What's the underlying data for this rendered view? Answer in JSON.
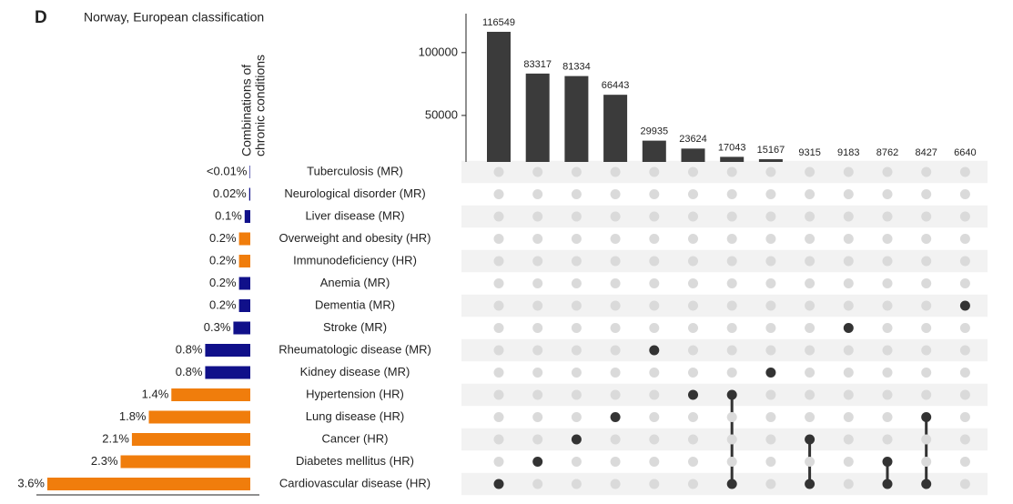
{
  "chart_data": {
    "type": "upset",
    "panel_label": "D",
    "title": "Norway, European classification",
    "ylabel": [
      "Combinations of",
      "chronic conditions"
    ],
    "bar_color": "#3b3b3b",
    "ylim": [
      13000,
      131000
    ],
    "yticks": [
      50000,
      100000
    ],
    "intersection_sizes": [
      116549,
      83317,
      81334,
      66443,
      29935,
      23624,
      17043,
      15167,
      9315,
      9183,
      8762,
      8427,
      6640
    ],
    "set_xlim": [
      0,
      3.6
    ],
    "sets": [
      {
        "name": "Tuberculosis (MR)",
        "value": 0.01,
        "value_label": "<0.01%",
        "color": "#10108a",
        "members": [
          false,
          false,
          false,
          false,
          false,
          false,
          false,
          false,
          false,
          false,
          false,
          false,
          false
        ]
      },
      {
        "name": "Neurological disorder (MR)",
        "value": 0.02,
        "value_label": "0.02%",
        "color": "#10108a",
        "members": [
          false,
          false,
          false,
          false,
          false,
          false,
          false,
          false,
          false,
          false,
          false,
          false,
          false
        ]
      },
      {
        "name": "Liver disease (MR)",
        "value": 0.1,
        "value_label": "0.1%",
        "color": "#10108a",
        "members": [
          false,
          false,
          false,
          false,
          false,
          false,
          false,
          false,
          false,
          false,
          false,
          false,
          false
        ]
      },
      {
        "name": "Overweight and obesity (HR)",
        "value": 0.2,
        "value_label": "0.2%",
        "color": "#f07d0c",
        "members": [
          false,
          false,
          false,
          false,
          false,
          false,
          false,
          false,
          false,
          false,
          false,
          false,
          false
        ]
      },
      {
        "name": "Immunodeficiency (HR)",
        "value": 0.2,
        "value_label": "0.2%",
        "color": "#f07d0c",
        "members": [
          false,
          false,
          false,
          false,
          false,
          false,
          false,
          false,
          false,
          false,
          false,
          false,
          false
        ]
      },
      {
        "name": "Anemia (MR)",
        "value": 0.2,
        "value_label": "0.2%",
        "color": "#10108a",
        "members": [
          false,
          false,
          false,
          false,
          false,
          false,
          false,
          false,
          false,
          false,
          false,
          false,
          false
        ]
      },
      {
        "name": "Dementia (MR)",
        "value": 0.2,
        "value_label": "0.2%",
        "color": "#10108a",
        "members": [
          false,
          false,
          false,
          false,
          false,
          false,
          false,
          false,
          false,
          false,
          false,
          false,
          true
        ]
      },
      {
        "name": "Stroke (MR)",
        "value": 0.3,
        "value_label": "0.3%",
        "color": "#10108a",
        "members": [
          false,
          false,
          false,
          false,
          false,
          false,
          false,
          false,
          false,
          true,
          false,
          false,
          false
        ]
      },
      {
        "name": "Rheumatologic disease (MR)",
        "value": 0.8,
        "value_label": "0.8%",
        "color": "#10108a",
        "members": [
          false,
          false,
          false,
          false,
          true,
          false,
          false,
          false,
          false,
          false,
          false,
          false,
          false
        ]
      },
      {
        "name": "Kidney disease (MR)",
        "value": 0.8,
        "value_label": "0.8%",
        "color": "#10108a",
        "members": [
          false,
          false,
          false,
          false,
          false,
          false,
          false,
          true,
          false,
          false,
          false,
          false,
          false
        ]
      },
      {
        "name": "Hypertension (HR)",
        "value": 1.4,
        "value_label": "1.4%",
        "color": "#f07d0c",
        "members": [
          false,
          false,
          false,
          false,
          false,
          true,
          true,
          false,
          false,
          false,
          false,
          false,
          false
        ]
      },
      {
        "name": "Lung disease (HR)",
        "value": 1.8,
        "value_label": "1.8%",
        "color": "#f07d0c",
        "members": [
          false,
          false,
          false,
          true,
          false,
          false,
          false,
          false,
          false,
          false,
          false,
          true,
          false
        ]
      },
      {
        "name": "Cancer (HR)",
        "value": 2.1,
        "value_label": "2.1%",
        "color": "#f07d0c",
        "members": [
          false,
          false,
          true,
          false,
          false,
          false,
          false,
          false,
          true,
          false,
          false,
          false,
          false
        ]
      },
      {
        "name": "Diabetes mellitus (HR)",
        "value": 2.3,
        "value_label": "2.3%",
        "color": "#f07d0c",
        "members": [
          false,
          true,
          false,
          false,
          false,
          false,
          false,
          false,
          false,
          false,
          true,
          false,
          false
        ]
      },
      {
        "name": "Cardiovascular disease (HR)",
        "value": 3.6,
        "value_label": "3.6%",
        "color": "#f07d0c",
        "members": [
          true,
          false,
          false,
          false,
          false,
          false,
          true,
          false,
          true,
          false,
          true,
          true,
          false
        ]
      }
    ]
  }
}
